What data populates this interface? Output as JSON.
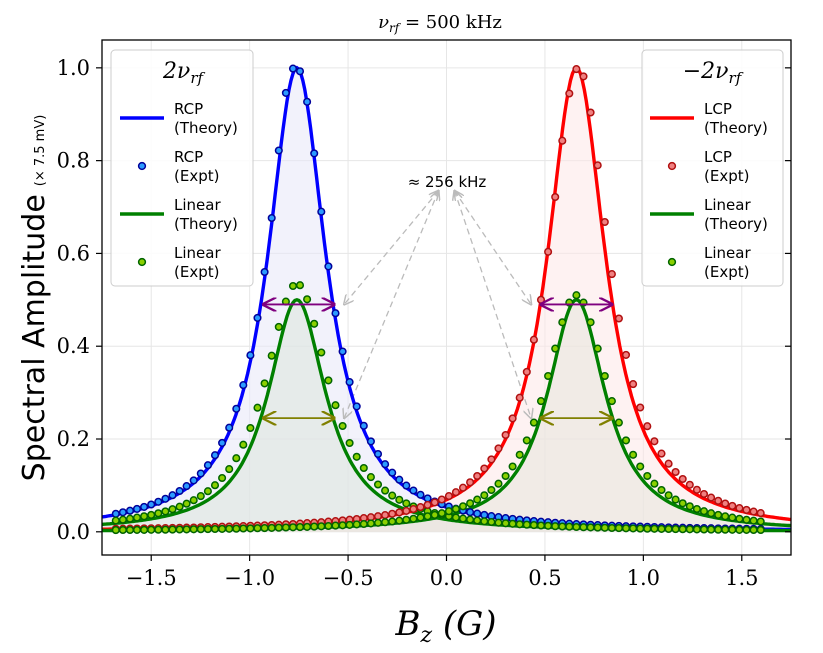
{
  "chart_data": {
    "type": "line",
    "title": "νrf = 500 kHz",
    "title_main": "ν",
    "title_sub": "rf",
    "title_rest": " = 500 kHz",
    "xlabel_main": "B",
    "xlabel_sub": "z",
    "xlabel_rest": " (G)",
    "ylabel": "Spectral Amplitude",
    "ylabel_unit": "(× 7.5 mV)",
    "xlim": [
      -1.75,
      1.75
    ],
    "ylim": [
      -0.05,
      1.06
    ],
    "xticks": [
      -1.5,
      -1.0,
      -0.5,
      0.0,
      0.5,
      1.0,
      1.5
    ],
    "xtick_labels": [
      "−1.5",
      "−1.0",
      "−0.5",
      "0.0",
      "0.5",
      "1.0",
      "1.5"
    ],
    "yticks": [
      0.0,
      0.2,
      0.4,
      0.6,
      0.8,
      1.0
    ],
    "ytick_labels": [
      "0.0",
      "0.2",
      "0.4",
      "0.6",
      "0.8",
      "1.0"
    ],
    "grid": true,
    "annotation": "≈ 256 kHz",
    "annotation_point": [
      0.0,
      0.735
    ],
    "annotation_targets": [
      [
        -0.52,
        0.49
      ],
      [
        0.43,
        0.49
      ],
      [
        -0.52,
        0.245
      ],
      [
        0.43,
        0.245
      ]
    ],
    "fwhm_arrows": [
      {
        "x1": -0.93,
        "x2": -0.57,
        "y": 0.49,
        "color": "#7f007f"
      },
      {
        "x1": -0.93,
        "x2": -0.57,
        "y": 0.245,
        "color": "#808000"
      },
      {
        "x1": 0.48,
        "x2": 0.84,
        "y": 0.49,
        "color": "#7f007f"
      },
      {
        "x1": 0.48,
        "x2": 0.84,
        "y": 0.245,
        "color": "#808000"
      }
    ],
    "series": [
      {
        "name": "RCP (Theory)",
        "kind": "line",
        "shape": "lorentzian",
        "center": -0.76,
        "amplitude": 1.0,
        "hwhm": 0.18,
        "color": "#0000ff",
        "fill": "#e8e8f8"
      },
      {
        "name": "RCP (Expt)",
        "kind": "scatter",
        "shape": "lorentzian",
        "center": -0.76,
        "amplitude": 1.0,
        "hwhm": 0.185,
        "x_range": [
          -1.68,
          1.63
        ],
        "step": 0.036,
        "color": "#2b9bff",
        "edge": "#00009a",
        "jitter": [
          [
            -0.86,
            0.02
          ],
          [
            -0.83,
            0.03
          ],
          [
            -0.79,
            0.01
          ]
        ]
      },
      {
        "name": "Linear (Theory)",
        "kind": "line",
        "shape": "lorentzian",
        "center": -0.76,
        "amplitude": 0.5,
        "hwhm": 0.18,
        "color": "#008000",
        "fill": "#dde6dd"
      },
      {
        "name": "Linear (Expt)",
        "kind": "scatter",
        "shape": "lorentzian",
        "center": -0.76,
        "amplitude": 0.535,
        "hwhm": 0.2,
        "x_range": [
          -1.68,
          1.63
        ],
        "step": 0.036,
        "color": "#8bd000",
        "edge": "#006400"
      },
      {
        "name": "LCP (Theory)",
        "kind": "line",
        "shape": "lorentzian",
        "center": 0.66,
        "amplitude": 1.0,
        "hwhm": 0.18,
        "color": "#ff0000",
        "fill": "#fde8e8"
      },
      {
        "name": "LCP (Expt)",
        "kind": "scatter",
        "shape": "lorentzian",
        "center": 0.67,
        "amplitude": 1.0,
        "hwhm": 0.19,
        "x_range": [
          -1.68,
          1.63
        ],
        "step": 0.036,
        "color": "#f08080",
        "edge": "#b01010"
      },
      {
        "name": "Linear (Theory) right",
        "kind": "line",
        "shape": "lorentzian",
        "center": 0.66,
        "amplitude": 0.5,
        "hwhm": 0.18,
        "color": "#008000",
        "fill": "#e6e6dc"
      },
      {
        "name": "Linear (Expt) right",
        "kind": "scatter",
        "shape": "lorentzian",
        "center": 0.66,
        "amplitude": 0.51,
        "hwhm": 0.2,
        "x_range": [
          -1.68,
          1.63
        ],
        "step": 0.036,
        "color": "#8bd000",
        "edge": "#006400"
      }
    ],
    "legends": [
      {
        "position": "top-left",
        "title_main": "2ν",
        "title_sub": "rf",
        "entries": [
          {
            "line1": "RCP",
            "line2": "(Theory)",
            "kind": "line",
            "color": "#0000ff"
          },
          {
            "line1": "RCP",
            "line2": "(Expt)",
            "kind": "marker",
            "color": "#2b9bff",
            "edge": "#00009a"
          },
          {
            "line1": "Linear",
            "line2": "(Theory)",
            "kind": "line",
            "color": "#008000"
          },
          {
            "line1": "Linear",
            "line2": "(Expt)",
            "kind": "marker",
            "color": "#8bd000",
            "edge": "#006400"
          }
        ]
      },
      {
        "position": "top-right",
        "title_main": "−2ν",
        "title_sub": "rf",
        "entries": [
          {
            "line1": "LCP",
            "line2": "(Theory)",
            "kind": "line",
            "color": "#ff0000"
          },
          {
            "line1": "LCP",
            "line2": "(Expt)",
            "kind": "marker",
            "color": "#f08080",
            "edge": "#b01010"
          },
          {
            "line1": "Linear",
            "line2": "(Theory)",
            "kind": "line",
            "color": "#008000"
          },
          {
            "line1": "Linear",
            "line2": "(Expt)",
            "kind": "marker",
            "color": "#8bd000",
            "edge": "#006400"
          }
        ]
      }
    ]
  }
}
